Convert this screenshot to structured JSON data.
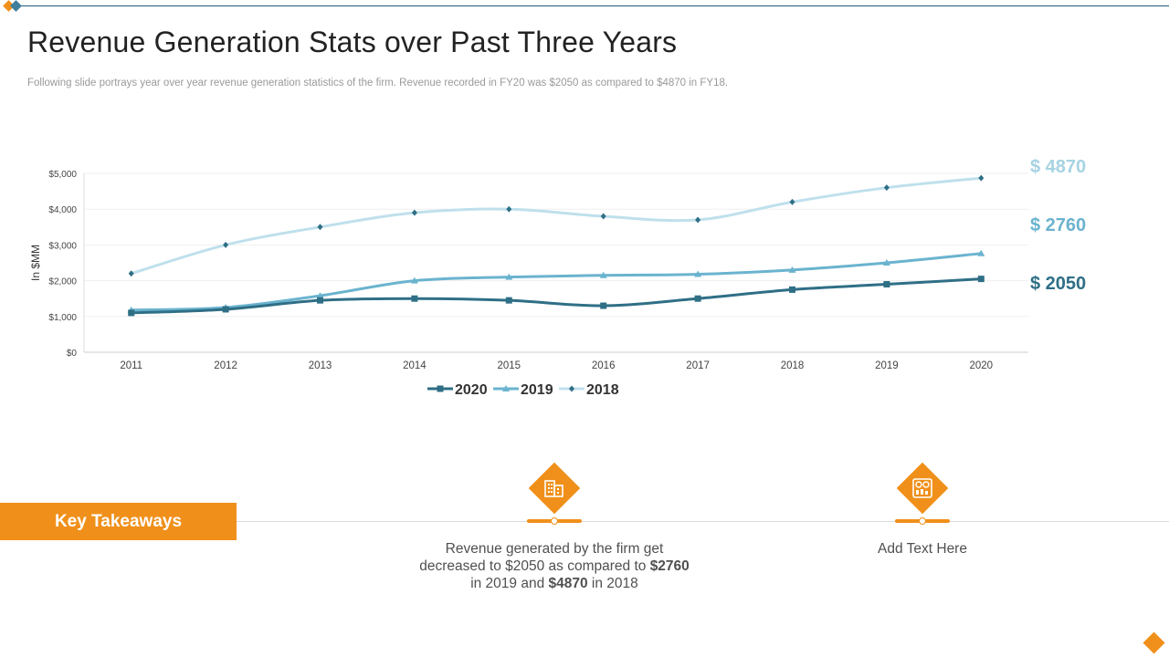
{
  "slide": {
    "title": "Revenue Generation Stats over Past Three Years",
    "subtitle": "Following slide portrays year over year revenue generation statistics of the firm. Revenue recorded in FY20 was $2050 as compared to $4870 in FY18."
  },
  "colors": {
    "accent_orange": "#f0901a",
    "dark_teal": "#2f6f86",
    "mid_teal": "#6ab3cf",
    "light_teal": "#bfe0ec",
    "decor_blue": "#3f7f9d"
  },
  "callouts": [
    {
      "text": "$ 4870",
      "color": "#a6d3e3"
    },
    {
      "text": "$ 2760",
      "color": "#6ab3cf"
    },
    {
      "text": "$ 2050",
      "color": "#2f6f86"
    }
  ],
  "chart_data": {
    "type": "line",
    "x": [
      "2011",
      "2012",
      "2013",
      "2014",
      "2015",
      "2016",
      "2017",
      "2018",
      "2019",
      "2020"
    ],
    "ylabel": "In $MM",
    "ylim": [
      0,
      5000
    ],
    "yticks": [
      0,
      1000,
      2000,
      3000,
      4000,
      5000
    ],
    "ytick_labels": [
      "$0",
      "$1,000",
      "$2,000",
      "$3,000",
      "$4,000",
      "$5,000"
    ],
    "grid": true,
    "legend_position": "bottom",
    "series": [
      {
        "name": "2020",
        "values": [
          1100,
          1200,
          1450,
          1500,
          1450,
          1300,
          1500,
          1750,
          1900,
          2050
        ],
        "color": "#2f6f86",
        "marker": "square",
        "width": 3
      },
      {
        "name": "2019",
        "values": [
          1180,
          1250,
          1580,
          2000,
          2100,
          2150,
          2180,
          2300,
          2500,
          2760
        ],
        "color": "#6ab3cf",
        "marker": "triangle",
        "width": 3
      },
      {
        "name": "2018",
        "values": [
          2200,
          3000,
          3500,
          3900,
          4000,
          3800,
          3700,
          4200,
          4600,
          4870
        ],
        "color": "#bfe0ec",
        "marker": "diamond",
        "width": 3
      }
    ]
  },
  "takeaways": {
    "label": "Key Takeaways",
    "item1": {
      "icon": "buildings-icon",
      "part1": "Revenue  generated by the firm get decreased to $2050 as compared to ",
      "bold1": "$2760",
      "part2": " in 2019 and ",
      "bold2": "$4870",
      "part3": " in 2018"
    },
    "item2": {
      "icon": "dashboard-icon",
      "text": "Add Text Here"
    }
  }
}
